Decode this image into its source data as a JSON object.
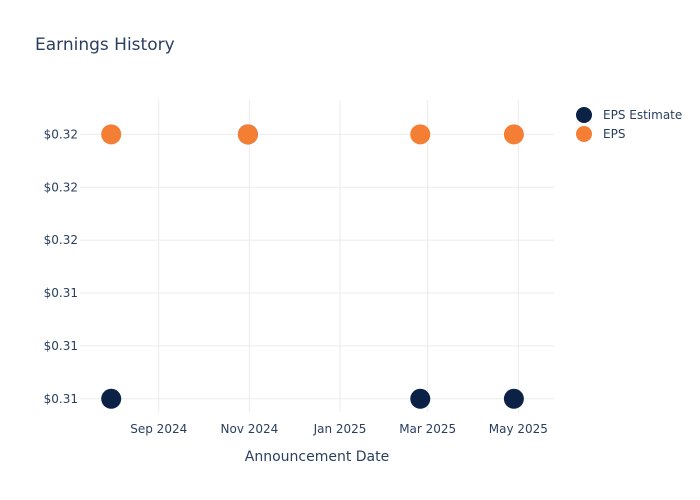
{
  "chart_data": {
    "type": "scatter",
    "title": "Earnings History",
    "xlabel": "Announcement Date",
    "ylabel": "",
    "x_ticks": [
      "Sep 2024",
      "Nov 2024",
      "Jan 2025",
      "Mar 2025",
      "May 2025"
    ],
    "x_tick_dates": [
      "2024-09-01",
      "2024-11-01",
      "2025-01-01",
      "2025-03-01",
      "2025-05-01"
    ],
    "xlim": [
      "2024-07-10",
      "2025-05-25"
    ],
    "y_ticks": [
      "$0.31",
      "$0.31",
      "$0.31",
      "$0.32",
      "$0.32",
      "$0.32"
    ],
    "y_tick_values": [
      0.31,
      0.312,
      0.314,
      0.316,
      0.318,
      0.32
    ],
    "ylim": [
      0.3095,
      0.3213
    ],
    "grid": true,
    "legend_position": "top-right",
    "series": [
      {
        "name": "EPS Estimate",
        "color": "#0c2146",
        "points": [
          {
            "x": "2024-07-31",
            "y": 0.31
          },
          {
            "x": "2024-10-31",
            "y": 0.32
          },
          {
            "x": "2025-02-24",
            "y": 0.31
          },
          {
            "x": "2025-04-28",
            "y": 0.31
          }
        ]
      },
      {
        "name": "EPS",
        "color": "#f57e35",
        "points": [
          {
            "x": "2024-07-31",
            "y": 0.32
          },
          {
            "x": "2024-10-31",
            "y": 0.32
          },
          {
            "x": "2025-02-24",
            "y": 0.32
          },
          {
            "x": "2025-04-28",
            "y": 0.32
          }
        ]
      }
    ]
  }
}
